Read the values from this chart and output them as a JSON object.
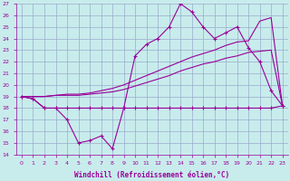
{
  "background_color": "#c8ecec",
  "grid_color": "#99aacc",
  "line_color": "#990099",
  "xlabel": "Windchill (Refroidissement éolien,°C)",
  "xlim": [
    -0.5,
    23.5
  ],
  "ylim": [
    14,
    27
  ],
  "xticks": [
    0,
    1,
    2,
    3,
    4,
    5,
    6,
    7,
    8,
    9,
    10,
    11,
    12,
    13,
    14,
    15,
    16,
    17,
    18,
    19,
    20,
    21,
    22,
    23
  ],
  "yticks": [
    14,
    15,
    16,
    17,
    18,
    19,
    20,
    21,
    22,
    23,
    24,
    25,
    26,
    27
  ],
  "hours": [
    0,
    1,
    2,
    3,
    4,
    5,
    6,
    7,
    8,
    9,
    10,
    11,
    12,
    13,
    14,
    15,
    16,
    17,
    18,
    19,
    20,
    21,
    22,
    23
  ],
  "line_jagged": [
    19.0,
    18.8,
    18.0,
    18.0,
    17.0,
    15.0,
    15.2,
    15.6,
    14.5,
    18.0,
    22.5,
    23.5,
    24.0,
    25.0,
    27.0,
    26.3,
    25.0,
    24.0,
    24.5,
    25.0,
    23.2,
    22.0,
    19.5,
    18.2
  ],
  "line_flat": [
    19.0,
    18.8,
    18.0,
    18.0,
    18.0,
    18.0,
    18.0,
    18.0,
    18.0,
    18.0,
    18.0,
    18.0,
    18.0,
    18.0,
    18.0,
    18.0,
    18.0,
    18.0,
    18.0,
    18.0,
    18.0,
    18.0,
    18.0,
    18.2
  ],
  "line_reg1": [
    19.0,
    19.0,
    19.0,
    19.1,
    19.1,
    19.1,
    19.2,
    19.3,
    19.4,
    19.6,
    19.9,
    20.2,
    20.5,
    20.8,
    21.2,
    21.5,
    21.8,
    22.0,
    22.3,
    22.5,
    22.8,
    22.9,
    23.0,
    18.2
  ],
  "line_reg2": [
    19.0,
    19.0,
    19.0,
    19.1,
    19.2,
    19.2,
    19.3,
    19.5,
    19.7,
    20.0,
    20.4,
    20.8,
    21.2,
    21.6,
    22.0,
    22.4,
    22.7,
    23.0,
    23.4,
    23.7,
    23.8,
    25.5,
    25.8,
    18.2
  ]
}
